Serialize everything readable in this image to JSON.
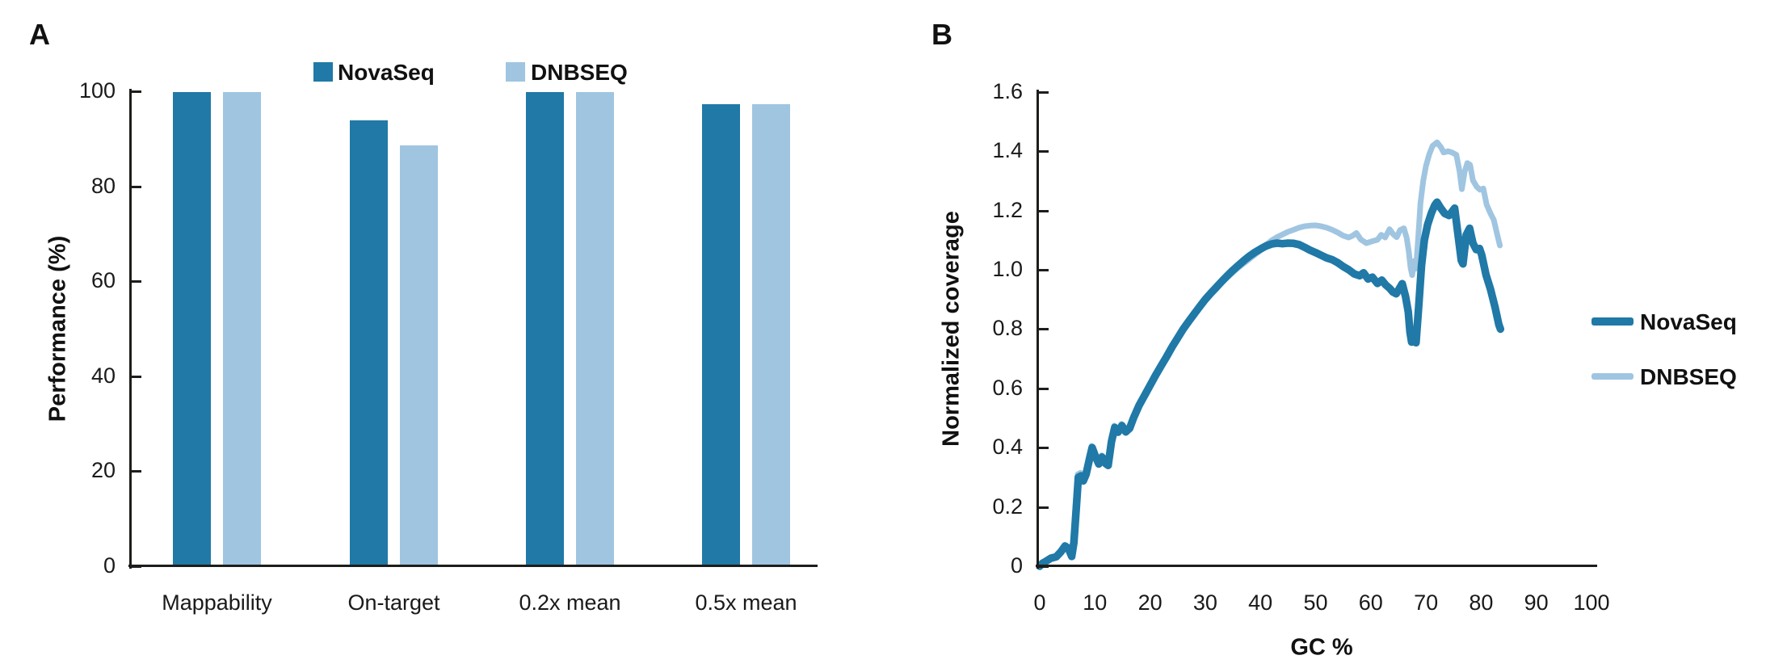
{
  "panels": {
    "a": "A",
    "b": "B"
  },
  "colors": {
    "novaseq": "#2079a7",
    "dnbseq": "#9fc5e1",
    "axis": "#1d1d1b",
    "text": "#1a1a1a",
    "background": "#ffffff"
  },
  "chart_data": [
    {
      "type": "bar",
      "panel": "A",
      "title": "",
      "categories": [
        "Mappability",
        "On-target",
        "0.2x mean",
        "0.5x mean"
      ],
      "series": [
        {
          "name": "NovaSeq",
          "color": "#2079a7",
          "values": [
            99.8,
            93.8,
            99.9,
            97.2
          ]
        },
        {
          "name": "DNBSEQ",
          "color": "#9fc5e1",
          "values": [
            99.8,
            88.6,
            99.9,
            97.2
          ]
        }
      ],
      "xlabel": "",
      "ylabel": "Performance (%)",
      "ylim": [
        0,
        100
      ],
      "yticks": [
        0,
        20,
        40,
        60,
        80,
        100
      ],
      "ytick_labels": [
        "0",
        "20",
        "40",
        "60",
        "80",
        "100"
      ],
      "grid": false,
      "legend_position": "top"
    },
    {
      "type": "line",
      "panel": "B",
      "title": "",
      "xlabel": "GC %",
      "ylabel": "Normalized coverage",
      "xlim": [
        0,
        100
      ],
      "ylim": [
        0,
        1.6
      ],
      "xticks": [
        0,
        10,
        20,
        30,
        40,
        50,
        60,
        70,
        80,
        90,
        100
      ],
      "xtick_labels": [
        "0",
        "10",
        "20",
        "30",
        "40",
        "50",
        "60",
        "70",
        "80",
        "90",
        "100"
      ],
      "yticks": [
        0,
        0.2,
        0.4,
        0.6,
        0.8,
        1.0,
        1.2,
        1.4,
        1.6
      ],
      "ytick_labels": [
        "0",
        "0.2",
        "0.4",
        "0.6",
        "0.8",
        "1.0",
        "1.2",
        "1.4",
        "1.6"
      ],
      "grid": false,
      "legend_position": "right",
      "series": [
        {
          "name": "NovaSeq",
          "color": "#2079a7",
          "stroke_width": 9.5,
          "points": [
            [
              0,
              0
            ],
            [
              0.5,
              0.01
            ],
            [
              1,
              0.015
            ],
            [
              2,
              0.027
            ],
            [
              3,
              0.032
            ],
            [
              3.8,
              0.048
            ],
            [
              4.6,
              0.068
            ],
            [
              5.2,
              0.06
            ],
            [
              5.8,
              0.033
            ],
            [
              6.2,
              0.08
            ],
            [
              6.6,
              0.19
            ],
            [
              7,
              0.3
            ],
            [
              7.5,
              0.305
            ],
            [
              7.9,
              0.288
            ],
            [
              8.4,
              0.31
            ],
            [
              9,
              0.36
            ],
            [
              9.5,
              0.4
            ],
            [
              10.1,
              0.37
            ],
            [
              10.7,
              0.345
            ],
            [
              11.3,
              0.368
            ],
            [
              11.9,
              0.347
            ],
            [
              12.4,
              0.34
            ],
            [
              13,
              0.42
            ],
            [
              13.6,
              0.468
            ],
            [
              14.2,
              0.452
            ],
            [
              14.9,
              0.474
            ],
            [
              15.6,
              0.453
            ],
            [
              16.3,
              0.465
            ],
            [
              17,
              0.5
            ],
            [
              18,
              0.542
            ],
            [
              19,
              0.576
            ],
            [
              20,
              0.61
            ],
            [
              21,
              0.644
            ],
            [
              22,
              0.676
            ],
            [
              23,
              0.707
            ],
            [
              24,
              0.74
            ],
            [
              25,
              0.77
            ],
            [
              26,
              0.8
            ],
            [
              27,
              0.826
            ],
            [
              28,
              0.851
            ],
            [
              29,
              0.876
            ],
            [
              30,
              0.9
            ],
            [
              31,
              0.921
            ],
            [
              32,
              0.941
            ],
            [
              33,
              0.961
            ],
            [
              34,
              0.98
            ],
            [
              35,
              0.998
            ],
            [
              36,
              1.015
            ],
            [
              37,
              1.031
            ],
            [
              38,
              1.046
            ],
            [
              39,
              1.059
            ],
            [
              40,
              1.07
            ],
            [
              41,
              1.08
            ],
            [
              42,
              1.087
            ],
            [
              43,
              1.09
            ],
            [
              44,
              1.088
            ],
            [
              45,
              1.09
            ],
            [
              46,
              1.089
            ],
            [
              47,
              1.085
            ],
            [
              48,
              1.076
            ],
            [
              49,
              1.066
            ],
            [
              50,
              1.058
            ],
            [
              51,
              1.049
            ],
            [
              52,
              1.04
            ],
            [
              53,
              1.034
            ],
            [
              54,
              1.024
            ],
            [
              55,
              1.011
            ],
            [
              56,
              1.0
            ],
            [
              57,
              0.986
            ],
            [
              58,
              0.98
            ],
            [
              58.7,
              0.99
            ],
            [
              59.5,
              0.969
            ],
            [
              60.3,
              0.975
            ],
            [
              61.2,
              0.954
            ],
            [
              62,
              0.965
            ],
            [
              62.7,
              0.949
            ],
            [
              63.4,
              0.938
            ],
            [
              64,
              0.925
            ],
            [
              64.6,
              0.919
            ],
            [
              65.1,
              0.934
            ],
            [
              65.7,
              0.953
            ],
            [
              66.3,
              0.91
            ],
            [
              66.8,
              0.858
            ],
            [
              67.1,
              0.79
            ],
            [
              67.4,
              0.756
            ],
            [
              67.9,
              0.782
            ],
            [
              68.2,
              0.754
            ],
            [
              68.7,
              0.88
            ],
            [
              69.2,
              1.015
            ],
            [
              69.7,
              1.1
            ],
            [
              70.3,
              1.152
            ],
            [
              71,
              1.192
            ],
            [
              71.6,
              1.218
            ],
            [
              72,
              1.228
            ],
            [
              72.6,
              1.21
            ],
            [
              73.4,
              1.19
            ],
            [
              74.2,
              1.183
            ],
            [
              74.8,
              1.198
            ],
            [
              75.2,
              1.208
            ],
            [
              75.8,
              1.12
            ],
            [
              76.4,
              1.032
            ],
            [
              76.7,
              1.02
            ],
            [
              77.3,
              1.118
            ],
            [
              77.9,
              1.14
            ],
            [
              78.5,
              1.09
            ],
            [
              79.1,
              1.068
            ],
            [
              79.7,
              1.072
            ],
            [
              80.1,
              1.05
            ],
            [
              80.9,
              0.982
            ],
            [
              81.7,
              0.934
            ],
            [
              82.5,
              0.875
            ],
            [
              83.2,
              0.815
            ],
            [
              83.5,
              0.8
            ]
          ]
        },
        {
          "name": "DNBSEQ",
          "color": "#9fc5e1",
          "stroke_width": 7,
          "points": [
            [
              0,
              0
            ],
            [
              0.5,
              0.012
            ],
            [
              1,
              0.018
            ],
            [
              2,
              0.03
            ],
            [
              3,
              0.036
            ],
            [
              3.8,
              0.053
            ],
            [
              4.5,
              0.072
            ],
            [
              5.1,
              0.064
            ],
            [
              5.7,
              0.038
            ],
            [
              6.1,
              0.09
            ],
            [
              6.5,
              0.21
            ],
            [
              6.9,
              0.31
            ],
            [
              7.4,
              0.315
            ],
            [
              7.8,
              0.3
            ],
            [
              8.3,
              0.32
            ],
            [
              8.9,
              0.37
            ],
            [
              9.4,
              0.406
            ],
            [
              10,
              0.376
            ],
            [
              10.6,
              0.35
            ],
            [
              11.2,
              0.374
            ],
            [
              11.8,
              0.352
            ],
            [
              12.3,
              0.346
            ],
            [
              12.9,
              0.428
            ],
            [
              13.5,
              0.474
            ],
            [
              14.1,
              0.458
            ],
            [
              14.8,
              0.48
            ],
            [
              15.5,
              0.459
            ],
            [
              16.2,
              0.47
            ],
            [
              17,
              0.503
            ],
            [
              18,
              0.54
            ],
            [
              19,
              0.572
            ],
            [
              20,
              0.605
            ],
            [
              21,
              0.639
            ],
            [
              22,
              0.671
            ],
            [
              23,
              0.702
            ],
            [
              24,
              0.735
            ],
            [
              25,
              0.765
            ],
            [
              26,
              0.795
            ],
            [
              27,
              0.821
            ],
            [
              28,
              0.846
            ],
            [
              29,
              0.871
            ],
            [
              30,
              0.895
            ],
            [
              31,
              0.916
            ],
            [
              32,
              0.936
            ],
            [
              33,
              0.956
            ],
            [
              34,
              0.974
            ],
            [
              35,
              0.991
            ],
            [
              36,
              1.007
            ],
            [
              37,
              1.022
            ],
            [
              38,
              1.036
            ],
            [
              39,
              1.051
            ],
            [
              40,
              1.065
            ],
            [
              41,
              1.084
            ],
            [
              42,
              1.099
            ],
            [
              43,
              1.11
            ],
            [
              44,
              1.119
            ],
            [
              45,
              1.128
            ],
            [
              46,
              1.135
            ],
            [
              47,
              1.142
            ],
            [
              48,
              1.147
            ],
            [
              49,
              1.149
            ],
            [
              50,
              1.15
            ],
            [
              51,
              1.147
            ],
            [
              52,
              1.142
            ],
            [
              53,
              1.135
            ],
            [
              54,
              1.126
            ],
            [
              55,
              1.115
            ],
            [
              56,
              1.109
            ],
            [
              56.7,
              1.115
            ],
            [
              57.4,
              1.124
            ],
            [
              58.2,
              1.102
            ],
            [
              59.2,
              1.09
            ],
            [
              60.2,
              1.096
            ],
            [
              61.2,
              1.101
            ],
            [
              61.9,
              1.118
            ],
            [
              62.6,
              1.109
            ],
            [
              63.4,
              1.137
            ],
            [
              64.1,
              1.119
            ],
            [
              64.7,
              1.11
            ],
            [
              65.3,
              1.134
            ],
            [
              66,
              1.14
            ],
            [
              66.5,
              1.108
            ],
            [
              66.9,
              1.06
            ],
            [
              67.2,
              1.008
            ],
            [
              67.5,
              0.982
            ],
            [
              67.9,
              1.03
            ],
            [
              68.2,
              1.004
            ],
            [
              68.6,
              1.108
            ],
            [
              69,
              1.225
            ],
            [
              69.5,
              1.3
            ],
            [
              70,
              1.35
            ],
            [
              70.6,
              1.39
            ],
            [
              71.2,
              1.418
            ],
            [
              72,
              1.43
            ],
            [
              72.7,
              1.414
            ],
            [
              73.2,
              1.396
            ],
            [
              74,
              1.4
            ],
            [
              74.7,
              1.396
            ],
            [
              75.5,
              1.388
            ],
            [
              76.1,
              1.33
            ],
            [
              76.5,
              1.272
            ],
            [
              77,
              1.33
            ],
            [
              77.5,
              1.36
            ],
            [
              78,
              1.354
            ],
            [
              78.5,
              1.302
            ],
            [
              79.2,
              1.28
            ],
            [
              79.8,
              1.27
            ],
            [
              80.4,
              1.274
            ],
            [
              81,
              1.22
            ],
            [
              81.7,
              1.19
            ],
            [
              82.3,
              1.168
            ],
            [
              82.8,
              1.128
            ],
            [
              83.4,
              1.082
            ]
          ]
        }
      ]
    }
  ]
}
